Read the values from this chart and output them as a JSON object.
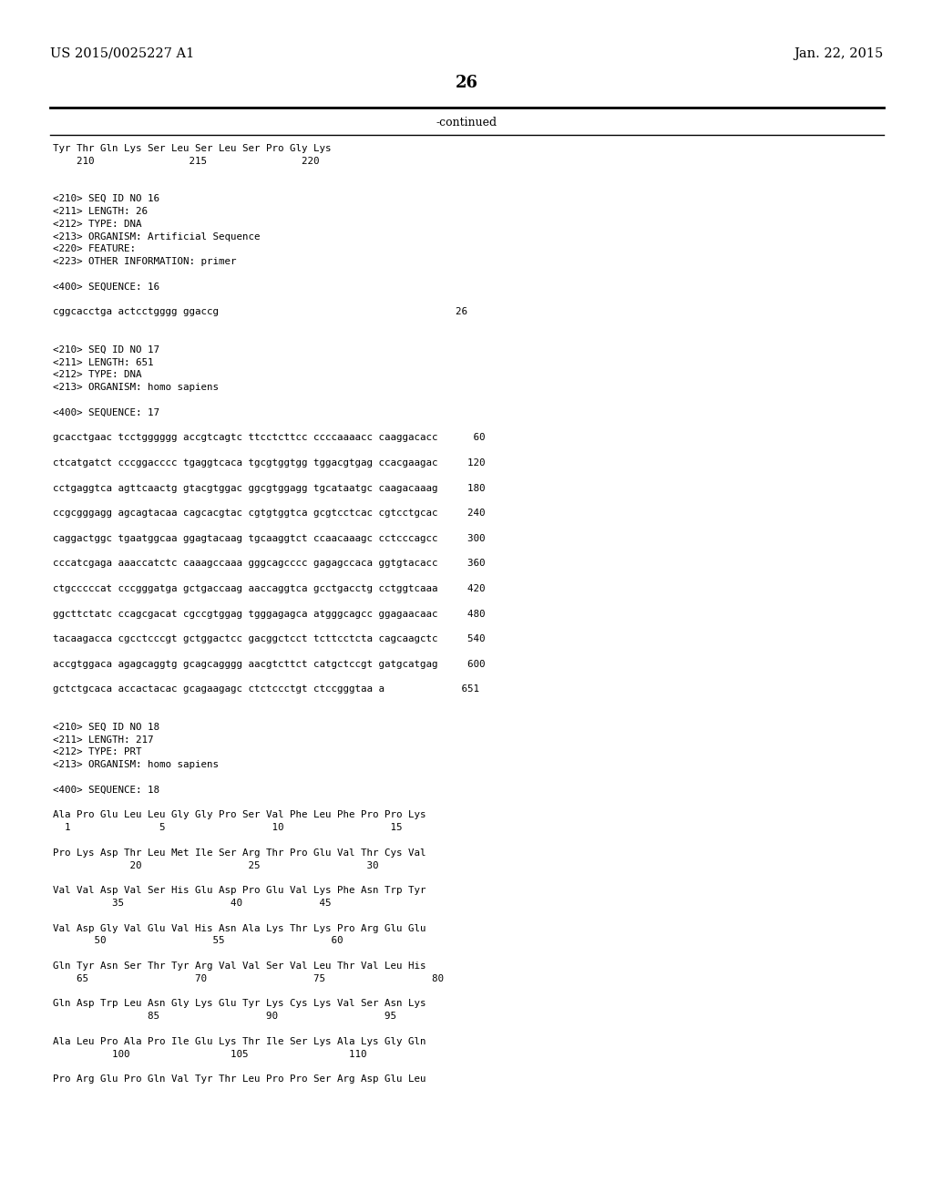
{
  "page_number": "26",
  "patent_left": "US 2015/0025227 A1",
  "patent_right": "Jan. 22, 2015",
  "continued_label": "-continued",
  "background_color": "#ffffff",
  "text_color": "#000000",
  "lines": [
    "Tyr Thr Gln Lys Ser Leu Ser Leu Ser Pro Gly Lys",
    "    210                215                220",
    "",
    "",
    "<210> SEQ ID NO 16",
    "<211> LENGTH: 26",
    "<212> TYPE: DNA",
    "<213> ORGANISM: Artificial Sequence",
    "<220> FEATURE:",
    "<223> OTHER INFORMATION: primer",
    "",
    "<400> SEQUENCE: 16",
    "",
    "cggcacctga actcctgggg ggaccg                                        26",
    "",
    "",
    "<210> SEQ ID NO 17",
    "<211> LENGTH: 651",
    "<212> TYPE: DNA",
    "<213> ORGANISM: homo sapiens",
    "",
    "<400> SEQUENCE: 17",
    "",
    "gcacctgaac tcctgggggg accgtcagtc ttcctcttcc ccccaaaacc caaggacacc      60",
    "",
    "ctcatgatct cccggacccc tgaggtcaca tgcgtggtgg tggacgtgag ccacgaagac     120",
    "",
    "cctgaggtca agttcaactg gtacgtggac ggcgtggagg tgcataatgc caagacaaag     180",
    "",
    "ccgcgggagg agcagtacaa cagcacgtac cgtgtggtca gcgtcctcac cgtcctgcac     240",
    "",
    "caggactggc tgaatggcaa ggagtacaag tgcaaggtct ccaacaaagc cctcccagcc     300",
    "",
    "cccatcgaga aaaccatctc caaagccaaa gggcagcccc gagagccaca ggtgtacacc     360",
    "",
    "ctgcccccat cccgggatga gctgaccaag aaccaggtca gcctgacctg cctggtcaaa     420",
    "",
    "ggcttctatc ccagcgacat cgccgtggag tgggagagca atgggcagcc ggagaacaac     480",
    "",
    "tacaagacca cgcctcccgt gctggactcc gacggctcct tcttcctcta cagcaagctc     540",
    "",
    "accgtggaca agagcaggtg gcagcagggg aacgtcttct catgctccgt gatgcatgag     600",
    "",
    "gctctgcaca accactacac gcagaagagc ctctccctgt ctccgggtaa a             651",
    "",
    "",
    "<210> SEQ ID NO 18",
    "<211> LENGTH: 217",
    "<212> TYPE: PRT",
    "<213> ORGANISM: homo sapiens",
    "",
    "<400> SEQUENCE: 18",
    "",
    "Ala Pro Glu Leu Leu Gly Gly Pro Ser Val Phe Leu Phe Pro Pro Lys",
    "  1               5                  10                  15",
    "",
    "Pro Lys Asp Thr Leu Met Ile Ser Arg Thr Pro Glu Val Thr Cys Val",
    "             20                  25                  30",
    "",
    "Val Val Asp Val Ser His Glu Asp Pro Glu Val Lys Phe Asn Trp Tyr",
    "          35                  40             45",
    "",
    "Val Asp Gly Val Glu Val His Asn Ala Lys Thr Lys Pro Arg Glu Glu",
    "       50                  55                  60",
    "",
    "Gln Tyr Asn Ser Thr Tyr Arg Val Val Ser Val Leu Thr Val Leu His",
    "    65                  70                  75                  80",
    "",
    "Gln Asp Trp Leu Asn Gly Lys Glu Tyr Lys Cys Lys Val Ser Asn Lys",
    "                85                  90                  95",
    "",
    "Ala Leu Pro Ala Pro Ile Glu Lys Thr Ile Ser Lys Ala Lys Gly Gln",
    "          100                 105                 110",
    "",
    "Pro Arg Glu Pro Gln Val Tyr Thr Leu Pro Pro Ser Arg Asp Glu Leu"
  ]
}
